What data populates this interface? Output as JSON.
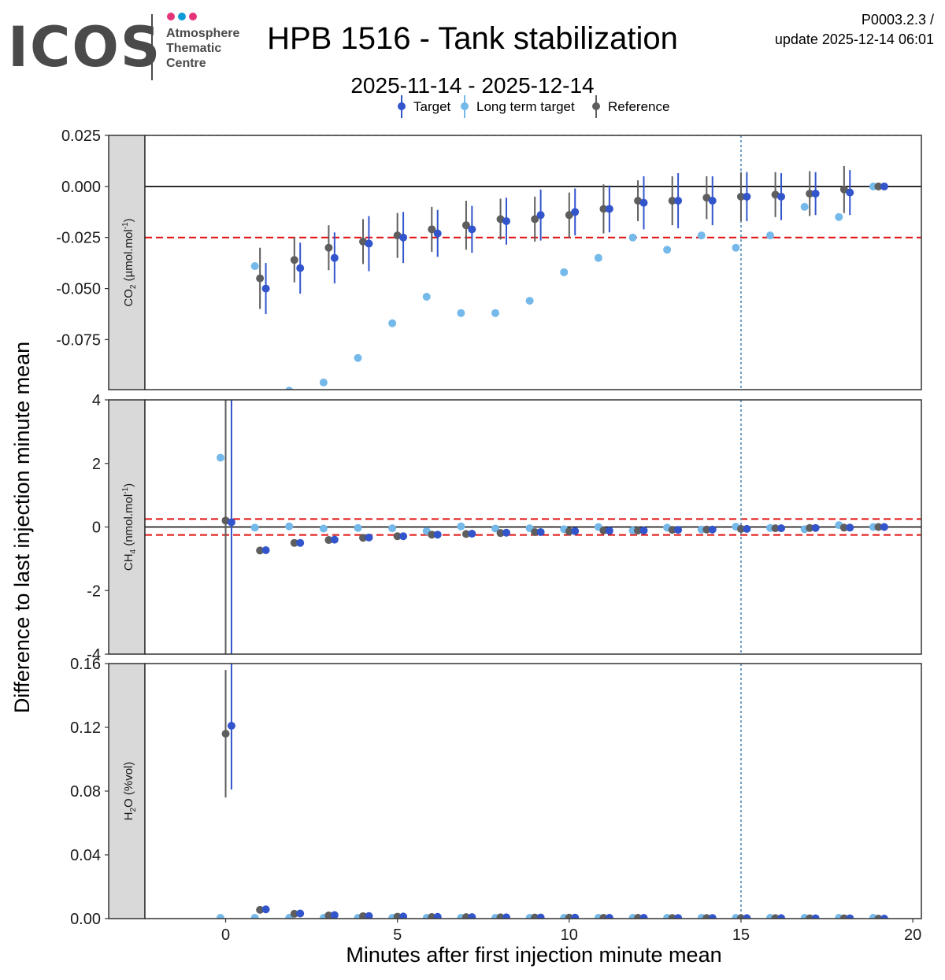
{
  "header": {
    "logo_text": "ICOS",
    "logo_sub": [
      "Atmosphere",
      "Thematic",
      "Centre"
    ],
    "logo_dot_colors": [
      "#e4357a",
      "#0e9bd8",
      "#e4357a"
    ],
    "title": "HPB 1516 - Tank stabilization",
    "subtitle": "2025-11-14 - 2025-12-14",
    "version": "P0003.2.3 /",
    "update": "update  2025-12-14 06:01"
  },
  "chart_data": {
    "type": "scatter",
    "x_label": "Minutes after first injection minute mean",
    "y_label": "Difference to last injection minute mean",
    "xlim": [
      -2.35,
      20.25
    ],
    "x_ticks": [
      0,
      5,
      10,
      15,
      20
    ],
    "vline_x": 15,
    "legend": {
      "position": "top",
      "items": [
        {
          "name": "Target",
          "color": "#3355cc",
          "errorbar": true
        },
        {
          "name": "Long term target",
          "color": "#74b9ea",
          "errorbar": true
        },
        {
          "name": "Reference",
          "color": "#5e5e5e",
          "errorbar": true
        }
      ]
    },
    "panels": [
      {
        "strip_main": "CO",
        "strip_sub": "2",
        "strip_rest": " (µmol.mol",
        "strip_sup": "-1",
        "strip_end": ")",
        "ylim": [
          -0.0995,
          0.025
        ],
        "y_ticks": [
          -0.075,
          -0.05,
          -0.025,
          0.0,
          0.025
        ],
        "y_tick_labels": [
          "-0.075",
          "-0.050",
          "-0.025",
          "0.000",
          "0.025"
        ],
        "zero_line": 0,
        "threshold_lines": [
          -0.025
        ],
        "top_dashed": 0.025,
        "series": [
          {
            "name": "Long term target",
            "x": [
              0.85,
              1.85,
              2.85,
              3.85,
              4.85,
              5.85,
              6.85,
              7.85,
              8.85,
              9.85,
              10.85,
              11.85,
              12.85,
              13.85,
              14.85,
              15.85,
              16.85,
              17.85,
              18.85
            ],
            "y": [
              -0.039,
              -0.1,
              -0.096,
              -0.084,
              -0.067,
              -0.054,
              -0.062,
              -0.062,
              -0.056,
              -0.042,
              -0.035,
              -0.025,
              -0.031,
              -0.024,
              -0.03,
              -0.024,
              -0.01,
              -0.015,
              0.0
            ]
          },
          {
            "name": "Reference",
            "x": [
              1.0,
              2.0,
              3.0,
              4.0,
              5.0,
              6.0,
              7.0,
              8.0,
              9.0,
              10.0,
              11.0,
              12.0,
              13.0,
              14.0,
              15.0,
              16.0,
              17.0,
              18.0,
              19.0
            ],
            "y": [
              -0.045,
              -0.036,
              -0.03,
              -0.027,
              -0.024,
              -0.021,
              -0.019,
              -0.016,
              -0.016,
              -0.014,
              -0.011,
              -0.007,
              -0.007,
              -0.0055,
              -0.005,
              -0.004,
              -0.0035,
              -0.0015,
              0.0
            ],
            "err": [
              0.015,
              0.011,
              0.011,
              0.011,
              0.011,
              0.011,
              0.012,
              0.01,
              0.011,
              0.011,
              0.012,
              0.01,
              0.012,
              0.0105,
              0.012,
              0.011,
              0.011,
              0.0115,
              0.0
            ]
          },
          {
            "name": "Target",
            "x": [
              1.17,
              2.17,
              3.17,
              4.17,
              5.17,
              6.17,
              7.17,
              8.17,
              9.17,
              10.17,
              11.17,
              12.17,
              13.17,
              14.17,
              15.17,
              16.17,
              17.17,
              18.17,
              19.17
            ],
            "y": [
              -0.05,
              -0.04,
              -0.035,
              -0.028,
              -0.025,
              -0.023,
              -0.021,
              -0.017,
              -0.014,
              -0.0125,
              -0.011,
              -0.008,
              -0.007,
              -0.007,
              -0.005,
              -0.005,
              -0.0035,
              -0.003,
              0.0
            ],
            "err": [
              0.0125,
              0.0125,
              0.0125,
              0.0135,
              0.0125,
              0.0115,
              0.0115,
              0.0115,
              0.0125,
              0.0115,
              0.0115,
              0.013,
              0.0135,
              0.012,
              0.012,
              0.0115,
              0.0105,
              0.011,
              0.0
            ]
          }
        ]
      },
      {
        "strip_main": "CH",
        "strip_sub": "4",
        "strip_rest": " (nmol.mol",
        "strip_sup": "-1",
        "strip_end": ")",
        "ylim": [
          -4,
          4
        ],
        "y_ticks": [
          -4,
          -2,
          0,
          2,
          4
        ],
        "y_tick_labels": [
          "-4",
          "-2",
          "0",
          "2",
          "4"
        ],
        "zero_line": 0,
        "threshold_lines": [
          0.25,
          -0.25
        ],
        "series": [
          {
            "name": "Long term target",
            "x": [
              -0.15,
              0.85,
              1.85,
              2.85,
              3.85,
              4.85,
              5.85,
              6.85,
              7.85,
              8.85,
              9.85,
              10.85,
              11.85,
              12.85,
              13.85,
              14.85,
              15.85,
              16.85,
              17.85,
              18.85
            ],
            "y": [
              2.18,
              -0.02,
              0.02,
              -0.05,
              -0.03,
              -0.04,
              -0.13,
              0.02,
              -0.05,
              -0.04,
              -0.07,
              0.0,
              -0.11,
              -0.02,
              -0.08,
              0.01,
              -0.03,
              -0.07,
              0.06,
              0.0
            ]
          },
          {
            "name": "Reference",
            "x": [
              0.0,
              1.0,
              2.0,
              3.0,
              4.0,
              5.0,
              6.0,
              7.0,
              8.0,
              9.0,
              10.0,
              11.0,
              12.0,
              13.0,
              14.0,
              15.0,
              16.0,
              17.0,
              18.0,
              19.0
            ],
            "y": [
              0.2,
              -0.74,
              -0.5,
              -0.41,
              -0.34,
              -0.29,
              -0.24,
              -0.22,
              -0.19,
              -0.16,
              -0.14,
              -0.11,
              -0.11,
              -0.09,
              -0.08,
              -0.06,
              -0.04,
              -0.03,
              -0.02,
              0.0
            ],
            "err": [
              4.9,
              0.03,
              0.03,
              0.03,
              0.03,
              0.03,
              0.03,
              0.03,
              0.03,
              0.03,
              0.03,
              0.03,
              0.03,
              0.03,
              0.03,
              0.03,
              0.03,
              0.03,
              0.03,
              0.0
            ]
          },
          {
            "name": "Target",
            "x": [
              0.17,
              1.17,
              2.17,
              3.17,
              4.17,
              5.17,
              6.17,
              7.17,
              8.17,
              9.17,
              10.17,
              11.17,
              12.17,
              13.17,
              14.17,
              15.17,
              16.17,
              17.17,
              18.17,
              19.17
            ],
            "y": [
              0.15,
              -0.73,
              -0.5,
              -0.4,
              -0.33,
              -0.29,
              -0.24,
              -0.21,
              -0.18,
              -0.16,
              -0.13,
              -0.12,
              -0.11,
              -0.09,
              -0.08,
              -0.06,
              -0.04,
              -0.03,
              -0.02,
              0.0
            ],
            "err": [
              4.9,
              0.03,
              0.03,
              0.03,
              0.03,
              0.03,
              0.03,
              0.03,
              0.03,
              0.03,
              0.03,
              0.03,
              0.03,
              0.03,
              0.03,
              0.03,
              0.03,
              0.03,
              0.03,
              0.0
            ]
          }
        ]
      },
      {
        "strip_main": "H",
        "strip_sub": "2",
        "strip_rest": "O (%vol)",
        "strip_sup": "",
        "strip_end": "",
        "ylim": [
          0,
          0.16
        ],
        "y_ticks": [
          0.0,
          0.04,
          0.08,
          0.12,
          0.16
        ],
        "y_tick_labels": [
          "0.00",
          "0.04",
          "0.08",
          "0.12",
          "0.16"
        ],
        "zero_line": null,
        "threshold_lines": [],
        "series": [
          {
            "name": "Long term target",
            "x": [
              -0.15,
              0.85,
              1.85,
              2.85,
              3.85,
              4.85,
              5.85,
              6.85,
              7.85,
              8.85,
              9.85,
              10.85,
              11.85,
              12.85,
              13.85,
              14.85,
              15.85,
              16.85,
              17.85,
              18.85
            ],
            "y": [
              0.0005,
              0.0005,
              0.0005,
              0.0005,
              0.0005,
              0.0005,
              0.0005,
              0.0005,
              0.0005,
              0.0005,
              0.0005,
              0.0005,
              0.0005,
              0.0005,
              0.0005,
              0.0005,
              0.0005,
              0.0005,
              0.0005,
              0.0005
            ]
          },
          {
            "name": "Reference",
            "x": [
              0.0,
              1.0,
              2.0,
              3.0,
              4.0,
              5.0,
              6.0,
              7.0,
              8.0,
              9.0,
              10.0,
              11.0,
              12.0,
              13.0,
              14.0,
              15.0,
              16.0,
              17.0,
              18.0,
              19.0
            ],
            "y": [
              0.116,
              0.0055,
              0.003,
              0.002,
              0.0015,
              0.0012,
              0.001,
              0.0009,
              0.0008,
              0.0007,
              0.0006,
              0.0005,
              0.0005,
              0.0004,
              0.0004,
              0.0003,
              0.0003,
              0.0002,
              0.0002,
              0.0
            ],
            "err": [
              0.04,
              0.0005,
              0.0005,
              0.0005,
              0.0005,
              0.0005,
              0.0005,
              0.0005,
              0.0005,
              0.0005,
              0.0005,
              0.0005,
              0.0005,
              0.0005,
              0.0005,
              0.0005,
              0.0005,
              0.0005,
              0.0005,
              0.0
            ]
          },
          {
            "name": "Target",
            "x": [
              0.17,
              1.17,
              2.17,
              3.17,
              4.17,
              5.17,
              6.17,
              7.17,
              8.17,
              9.17,
              10.17,
              11.17,
              12.17,
              13.17,
              14.17,
              15.17,
              16.17,
              17.17,
              18.17,
              19.17
            ],
            "y": [
              0.121,
              0.0058,
              0.0032,
              0.0022,
              0.0016,
              0.0013,
              0.0011,
              0.0009,
              0.0008,
              0.0007,
              0.0006,
              0.0005,
              0.0005,
              0.0004,
              0.0004,
              0.0003,
              0.0003,
              0.0002,
              0.0002,
              0.0
            ],
            "err": [
              0.04,
              0.0005,
              0.0005,
              0.0005,
              0.0005,
              0.0005,
              0.0005,
              0.0005,
              0.0005,
              0.0005,
              0.0005,
              0.0005,
              0.0005,
              0.0005,
              0.0005,
              0.0005,
              0.0005,
              0.0005,
              0.0005,
              0.0
            ]
          }
        ]
      }
    ]
  }
}
